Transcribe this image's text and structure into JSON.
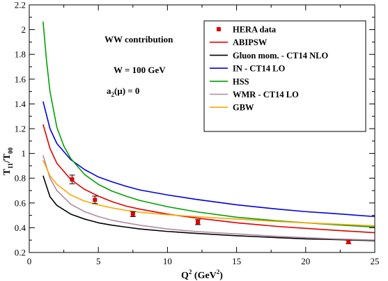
{
  "chart_data": {
    "type": "line",
    "xlabel": "Q",
    "xlabel_sup": "2",
    "xlabel_units_open": " (GeV",
    "xlabel_units_sup": "2",
    "xlabel_units_close": ")",
    "ylabel_main": "T",
    "ylabel_sub1": "11",
    "ylabel_mid": "/T",
    "ylabel_sub2": "00",
    "xlim": [
      0,
      25
    ],
    "ylim": [
      0.2,
      2.2
    ],
    "x_ticks": [
      0,
      5,
      10,
      15,
      20,
      25
    ],
    "x_tick_labels": [
      "0",
      "5",
      "10",
      "15",
      "20",
      "25"
    ],
    "y_ticks": [
      0.2,
      0.4,
      0.6,
      0.8,
      1.0,
      1.2,
      1.4,
      1.6,
      1.8,
      2.0,
      2.2
    ],
    "y_tick_labels": [
      "0.2",
      "0.4",
      "0.6",
      "0.8",
      "1",
      "1.2",
      "1.4",
      "1.6",
      "1.8",
      "2",
      "2.2"
    ],
    "annotations": [
      {
        "text": "WW contribution"
      },
      {
        "text": "W = 100 GeV"
      },
      {
        "text_main": "a",
        "text_sub": "2",
        "text_rest": "(μ) = 0"
      }
    ],
    "legend_position": "top-right",
    "points": {
      "name": "HERA data",
      "color": "#e00000",
      "data": [
        {
          "x": 3.1,
          "y": 0.79,
          "err": 0.035
        },
        {
          "x": 4.75,
          "y": 0.625,
          "err": 0.03
        },
        {
          "x": 7.5,
          "y": 0.51,
          "err": 0.02
        },
        {
          "x": 12.2,
          "y": 0.445,
          "err": 0.02
        },
        {
          "x": 23.1,
          "y": 0.285,
          "err": 0.015
        }
      ]
    },
    "series": [
      {
        "name": "ABIPSW",
        "color": "#e00000",
        "x": [
          1.0,
          1.5,
          2.0,
          3.0,
          4.0,
          5.0,
          6.0,
          7.0,
          8.0,
          10.0,
          12.0,
          15.0,
          18.0,
          20.0,
          22.0,
          25.0
        ],
        "values": [
          1.235,
          1.04,
          0.92,
          0.79,
          0.71,
          0.655,
          0.61,
          0.575,
          0.55,
          0.51,
          0.48,
          0.44,
          0.41,
          0.395,
          0.38,
          0.36
        ]
      },
      {
        "name": "Gluon mom. - CT14 NLO",
        "color": "#000000",
        "x": [
          1.0,
          1.5,
          2.0,
          3.0,
          4.0,
          5.0,
          6.0,
          7.0,
          8.0,
          10.0,
          12.0,
          15.0,
          18.0,
          20.0,
          22.0,
          25.0
        ],
        "values": [
          0.82,
          0.65,
          0.58,
          0.51,
          0.47,
          0.44,
          0.42,
          0.405,
          0.39,
          0.37,
          0.355,
          0.335,
          0.32,
          0.31,
          0.305,
          0.295
        ]
      },
      {
        "name": "IN - CT14 LO",
        "color": "#0000e0",
        "x": [
          1.0,
          1.5,
          2.0,
          3.0,
          4.0,
          5.0,
          6.0,
          7.0,
          8.0,
          10.0,
          12.0,
          15.0,
          18.0,
          20.0,
          22.0,
          25.0
        ],
        "values": [
          1.42,
          1.2,
          1.08,
          0.95,
          0.87,
          0.81,
          0.77,
          0.735,
          0.705,
          0.665,
          0.63,
          0.585,
          0.55,
          0.53,
          0.515,
          0.49
        ]
      },
      {
        "name": "HSS",
        "color": "#00a000",
        "x": [
          1.0,
          1.25,
          1.5,
          2.0,
          2.5,
          3.0,
          4.0,
          5.0,
          6.0,
          7.0,
          8.0,
          10.0,
          12.0,
          15.0,
          18.0,
          20.0,
          22.0,
          25.0
        ],
        "values": [
          2.065,
          1.75,
          1.5,
          1.21,
          1.06,
          0.96,
          0.83,
          0.75,
          0.695,
          0.655,
          0.62,
          0.57,
          0.53,
          0.485,
          0.455,
          0.44,
          0.425,
          0.405
        ]
      },
      {
        "name": "WMR - CT14 LO",
        "color": "#b08aa0",
        "x": [
          1.0,
          1.5,
          2.0,
          3.0,
          4.0,
          5.0,
          6.0,
          7.0,
          8.0,
          10.0,
          12.0,
          15.0,
          18.0,
          20.0,
          22.0,
          25.0
        ],
        "values": [
          0.985,
          0.8,
          0.7,
          0.59,
          0.53,
          0.49,
          0.46,
          0.44,
          0.42,
          0.39,
          0.37,
          0.35,
          0.33,
          0.32,
          0.31,
          0.3
        ]
      },
      {
        "name": "GBW",
        "color": "#ffa500",
        "x": [
          1.0,
          1.5,
          2.0,
          3.0,
          4.0,
          5.0,
          6.0,
          7.0,
          8.0,
          10.0,
          12.0,
          15.0,
          18.0,
          20.0,
          22.0,
          25.0
        ],
        "values": [
          0.945,
          0.82,
          0.75,
          0.665,
          0.615,
          0.585,
          0.56,
          0.54,
          0.525,
          0.505,
          0.49,
          0.47,
          0.45,
          0.44,
          0.43,
          0.415
        ]
      }
    ]
  }
}
